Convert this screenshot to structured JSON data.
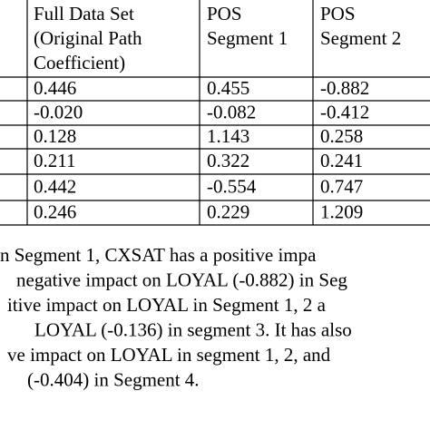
{
  "table": {
    "header": [
      [
        "Full Data Set",
        "(Original Path",
        "Coefficient)"
      ],
      [
        "POS",
        "Segment 1"
      ],
      [
        "POS",
        "Segment 2"
      ]
    ],
    "rows": [
      [
        "0.446",
        "0.455",
        "-0.882"
      ],
      [
        "-0.020",
        "-0.082",
        "-0.412"
      ],
      [
        "0.128",
        "1.143",
        "0.258"
      ],
      [
        "0.211",
        "0.322",
        "0.241"
      ],
      [
        "0.442",
        "-0.554",
        "0.747"
      ],
      [
        "0.246",
        "0.229",
        "1.209"
      ]
    ]
  },
  "paragraph": [
    "n Segment 1, CXSAT has a positive impa",
    "negative impact on LOYAL (-0.882) in Seg",
    "itive impact on LOYAL in Segment 1, 2 a",
    "LOYAL (-0.136) in segment 3. It has also",
    "ve impact on LOYAL in segment 1, 2, and",
    "(-0.404) in Segment 4."
  ]
}
